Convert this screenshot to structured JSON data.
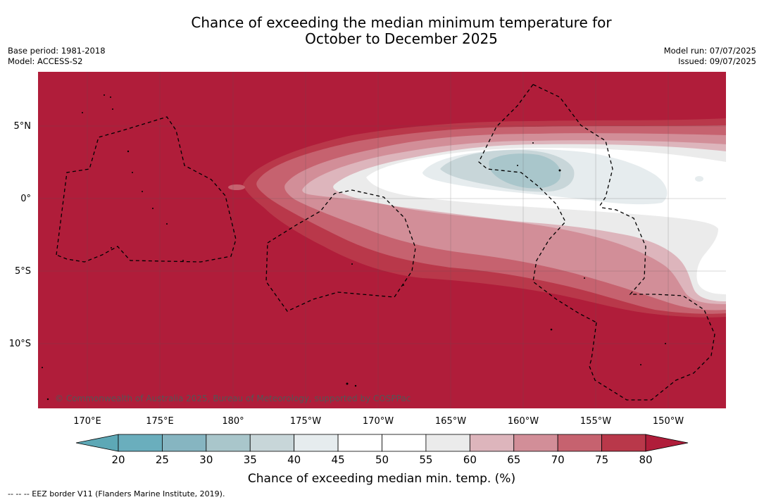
{
  "title_line1": "Chance of exceeding the median minimum temperature for",
  "title_line2": "October to December 2025",
  "base_period": "Base period: 1981-2018",
  "model": "Model: ACCESS-S2",
  "model_run": "Model run: 07/07/2025",
  "issued": "Issued: 09/07/2025",
  "lat_labels": [
    "5°N",
    "0°",
    "5°S",
    "10°S"
  ],
  "lon_labels": [
    "170°E",
    "175°E",
    "180°",
    "175°W",
    "170°W",
    "165°W",
    "160°W",
    "155°W",
    "150°W"
  ],
  "copyright": "© Commonwealth of Australia 2025, Bureau of Meteorology, supported by COSPPac",
  "colorbar": {
    "ticks": [
      "20",
      "25",
      "30",
      "35",
      "40",
      "45",
      "50",
      "55",
      "60",
      "65",
      "70",
      "75",
      "80"
    ],
    "colors": [
      "#6aaebd",
      "#86b5c1",
      "#a9c6cb",
      "#c8d6d9",
      "#e6ecee",
      "#ffffff",
      "#ffffff",
      "#ebebeb",
      "#ddb5bc",
      "#d28e98",
      "#c6626f",
      "#b9384a"
    ],
    "under_color": "#5da8b6",
    "over_color": "#b01d3a",
    "label": "Chance of exceeding median min. temp. (%)"
  },
  "footer": "--  --  -- EEZ border V11 (Flanders Marine Institute, 2019)."
}
